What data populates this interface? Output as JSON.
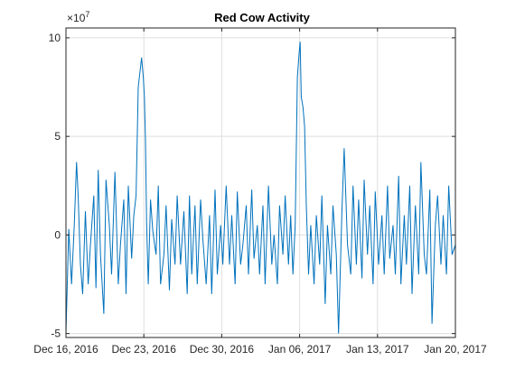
{
  "chart_data": {
    "type": "line",
    "title": "Red Cow Activity",
    "xlabel": "",
    "ylabel": "",
    "y_exponent_label": "10^7",
    "grid": true,
    "x_tick_labels": [
      "Dec 16, 2016",
      "Dec 23, 2016",
      "Dec 30, 2016",
      "Jan 06, 2017",
      "Jan 13, 2017",
      "Jan 20, 2017"
    ],
    "x_tick_days": [
      0,
      7,
      14,
      21,
      28,
      35
    ],
    "xlim": [
      0,
      35
    ],
    "y_tick_labels": [
      "10",
      "5",
      "0",
      "-5"
    ],
    "y_ticks": [
      10,
      5,
      0,
      -5
    ],
    "ylim": [
      -5.2,
      10.5
    ],
    "series": [
      {
        "color": "#0072BD",
        "x": [
          0,
          0.25,
          0.5,
          0.75,
          0.95,
          1.1,
          1.3,
          1.5,
          1.75,
          2.0,
          2.2,
          2.5,
          2.7,
          2.9,
          3.1,
          3.4,
          3.6,
          3.9,
          4.1,
          4.4,
          4.7,
          4.9,
          5.2,
          5.4,
          5.6,
          5.9,
          6.1,
          6.3,
          6.5,
          6.8,
          6.95,
          7.05,
          7.15,
          7.25,
          7.4,
          7.6,
          7.8,
          8.1,
          8.3,
          8.5,
          8.8,
          9.0,
          9.3,
          9.5,
          9.8,
          10.0,
          10.3,
          10.6,
          10.9,
          11.1,
          11.3,
          11.6,
          11.8,
          12.1,
          12.3,
          12.6,
          12.9,
          13.1,
          13.4,
          13.6,
          13.9,
          14.1,
          14.4,
          14.7,
          14.9,
          15.2,
          15.4,
          15.7,
          15.9,
          16.2,
          16.4,
          16.7,
          16.9,
          17.2,
          17.4,
          17.7,
          17.9,
          18.2,
          18.5,
          18.7,
          19.0,
          19.2,
          19.5,
          19.7,
          20.0,
          20.2,
          20.4,
          20.6,
          20.8,
          20.95,
          21.05,
          21.15,
          21.3,
          21.45,
          21.6,
          21.8,
          22.0,
          22.3,
          22.5,
          22.8,
          23.0,
          23.3,
          23.5,
          23.8,
          24.0,
          24.3,
          24.5,
          24.8,
          25.0,
          25.3,
          25.6,
          25.8,
          26.1,
          26.3,
          26.6,
          26.8,
          27.1,
          27.3,
          27.6,
          27.8,
          28.1,
          28.4,
          28.6,
          28.9,
          29.1,
          29.4,
          29.6,
          29.9,
          30.1,
          30.4,
          30.6,
          30.9,
          31.1,
          31.4,
          31.7,
          31.9,
          32.2,
          32.4,
          32.7,
          32.9,
          33.2,
          33.4,
          33.7,
          33.9,
          34.2,
          34.4,
          34.7,
          35.0
        ],
        "y": [
          -5.0,
          0.3,
          -2.5,
          0.5,
          3.7,
          2.0,
          -1.5,
          -3.0,
          1.2,
          -2.5,
          -0.5,
          2.0,
          -2.7,
          3.3,
          -1.0,
          -4.0,
          2.8,
          0.5,
          -2.0,
          3.2,
          -2.5,
          -0.5,
          1.8,
          -3.0,
          2.5,
          -1.2,
          1.0,
          2.0,
          7.5,
          9.0,
          8.0,
          7.0,
          4.8,
          0.5,
          -2.5,
          1.8,
          0.2,
          -1.0,
          2.5,
          -2.5,
          -1.0,
          1.5,
          -2.8,
          0.8,
          -1.5,
          2.0,
          -1.5,
          1.2,
          -3.0,
          2.0,
          -2.0,
          1.5,
          -2.5,
          1.8,
          -0.2,
          -2.5,
          1.0,
          -3.0,
          2.3,
          -2.0,
          0.5,
          -1.5,
          2.5,
          -1.5,
          1.0,
          -2.5,
          2.2,
          -1.5,
          -0.5,
          1.5,
          -2.0,
          2.3,
          -1.2,
          0.5,
          -2.0,
          1.5,
          -2.5,
          2.5,
          -1.5,
          0.0,
          -2.5,
          1.5,
          -1.0,
          2.0,
          -1.5,
          1.0,
          -2.0,
          0.5,
          8.0,
          9.2,
          9.8,
          7.0,
          6.5,
          5.5,
          1.5,
          -2.0,
          0.5,
          -2.5,
          1.0,
          -1.5,
          2.0,
          -3.5,
          0.5,
          -2.0,
          1.5,
          -1.0,
          -5.0,
          1.2,
          4.4,
          -0.5,
          -2.0,
          2.5,
          -1.5,
          1.8,
          -2.2,
          2.8,
          -1.0,
          1.5,
          -2.5,
          2.2,
          -1.5,
          1.0,
          -2.0,
          2.5,
          -1.2,
          0.5,
          -2.0,
          3.0,
          -2.5,
          1.0,
          -1.5,
          2.5,
          -3.0,
          1.5,
          -2.0,
          3.7,
          -1.0,
          -2.0,
          2.3,
          -4.5,
          0.5,
          2.0,
          -1.5,
          1.0,
          -2.0,
          2.5,
          -1.0,
          -0.5
        ]
      }
    ]
  }
}
